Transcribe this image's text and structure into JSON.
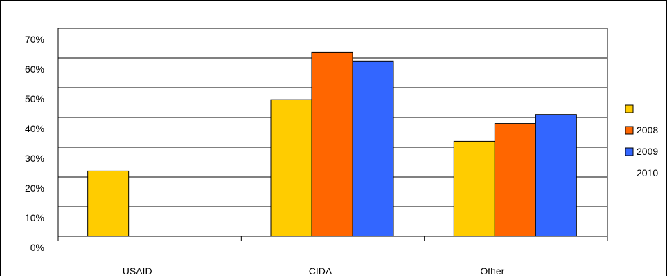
{
  "chart_data": {
    "type": "bar",
    "categories": [
      "USAID",
      "CIDA",
      "Other"
    ],
    "series": [
      {
        "name": "",
        "color": "#FFCC00",
        "values": [
          22,
          46,
          32
        ]
      },
      {
        "name": "2008",
        "color": "#FF6600",
        "values": [
          null,
          62,
          38
        ]
      },
      {
        "name": "2009",
        "color": "#3366FF",
        "values": [
          null,
          59,
          41
        ]
      }
    ],
    "extra_legend_label": "2010",
    "title": "",
    "xlabel": "",
    "ylabel": "",
    "ylim": [
      0,
      70
    ],
    "yticks": [
      0,
      10,
      20,
      30,
      40,
      50,
      60,
      70
    ],
    "ytick_labels": [
      "0%",
      "10%",
      "20%",
      "30%",
      "40%",
      "50%",
      "60%",
      "70%"
    ],
    "grid": true,
    "legend_position": "right"
  }
}
